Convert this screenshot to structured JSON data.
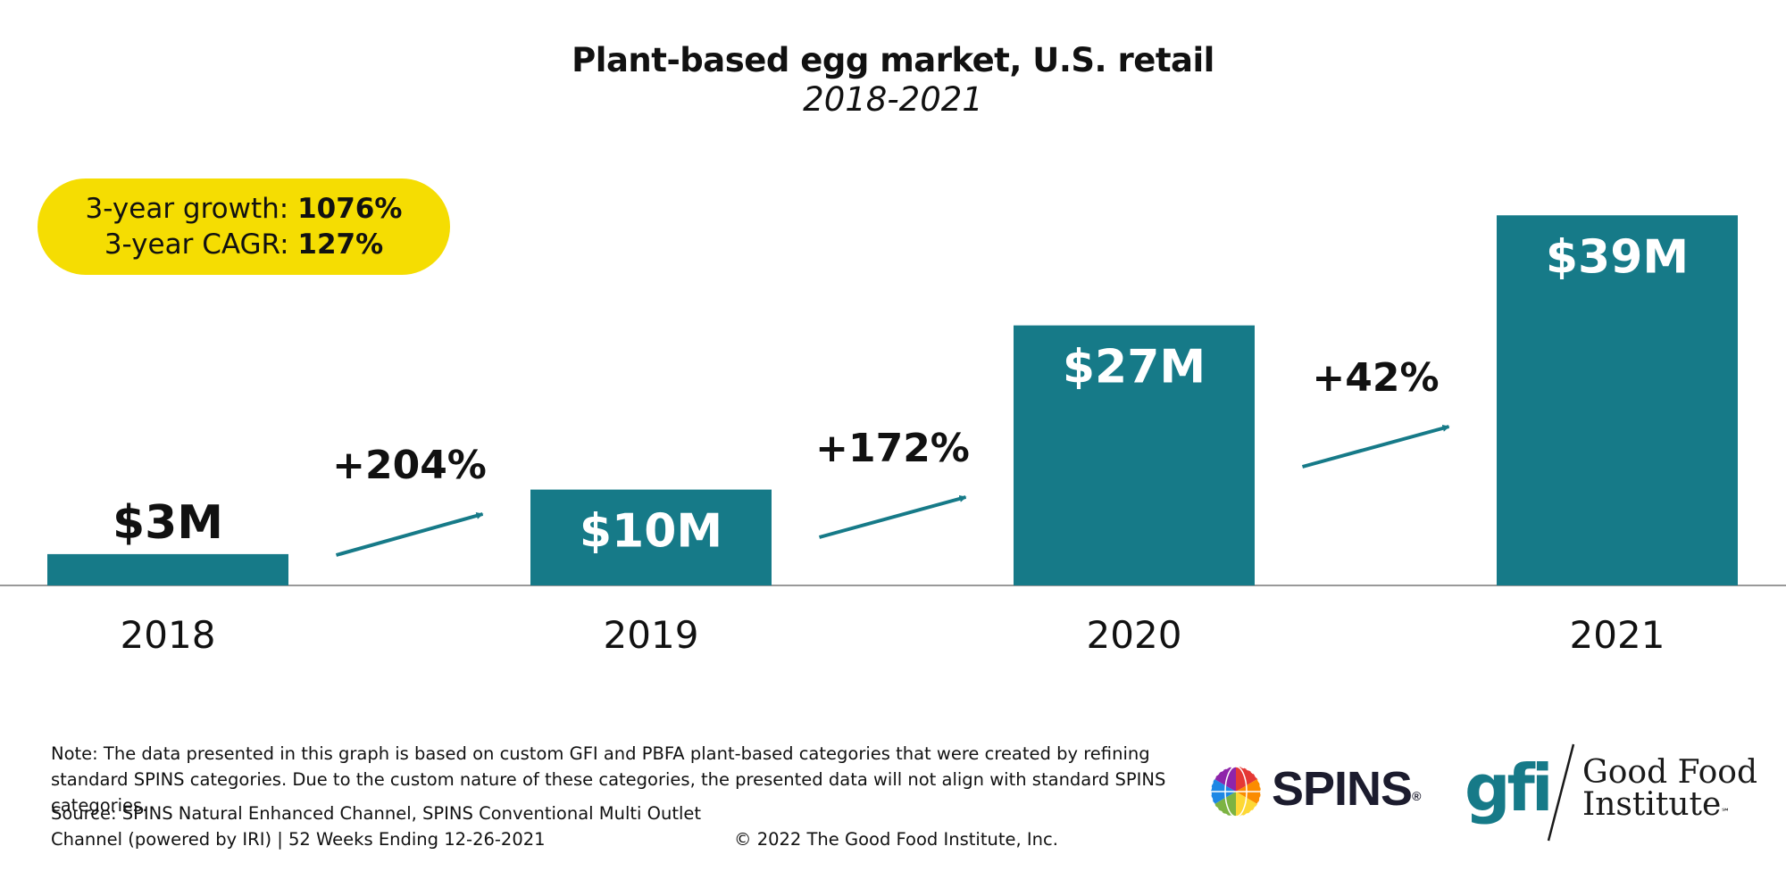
{
  "chart_data": {
    "type": "bar",
    "title": "Plant-based egg market, U.S. retail",
    "subtitle": "2018-2021",
    "categories": [
      "2018",
      "2019",
      "2020",
      "2021"
    ],
    "values": [
      3.3,
      10.1,
      27.4,
      39.0
    ],
    "unit": "$M",
    "value_labels": [
      "$3M",
      "$10M",
      "$27M",
      "$39M"
    ],
    "growth_labels": [
      "+204%",
      "+172%",
      "+42%"
    ],
    "ylim": [
      0,
      41
    ],
    "xlabel": "",
    "ylabel": "",
    "colors": {
      "bar": "#167a88",
      "arrow": "#167a88",
      "badge": "#f5dd02",
      "axis": "#999999"
    }
  },
  "summary": {
    "growth_label": "3-year growth: ",
    "growth_value": "1076%",
    "cagr_label": "3-year CAGR: ",
    "cagr_value": "127%"
  },
  "footer": {
    "note": "Note: The data presented in this graph is based on custom GFI and PBFA plant-based categories that were created by refining standard SPINS categories. Due to the custom nature of these categories, the presented data will not align with standard SPINS categories.",
    "source_line1": "Source: SPINS Natural Enhanced Channel, SPINS Conventional Multi Outlet",
    "source_line2": "Channel (powered by IRI) | 52 Weeks Ending 12-26-2021",
    "copyright": "© 2022 The Good Food Institute, Inc."
  },
  "logos": {
    "spins": "SPINS",
    "spins_mark": "®",
    "gfi_mark": "gfi",
    "gfi_line1": "Good Food",
    "gfi_line2": "Institute",
    "gfi_tm": "℠"
  }
}
